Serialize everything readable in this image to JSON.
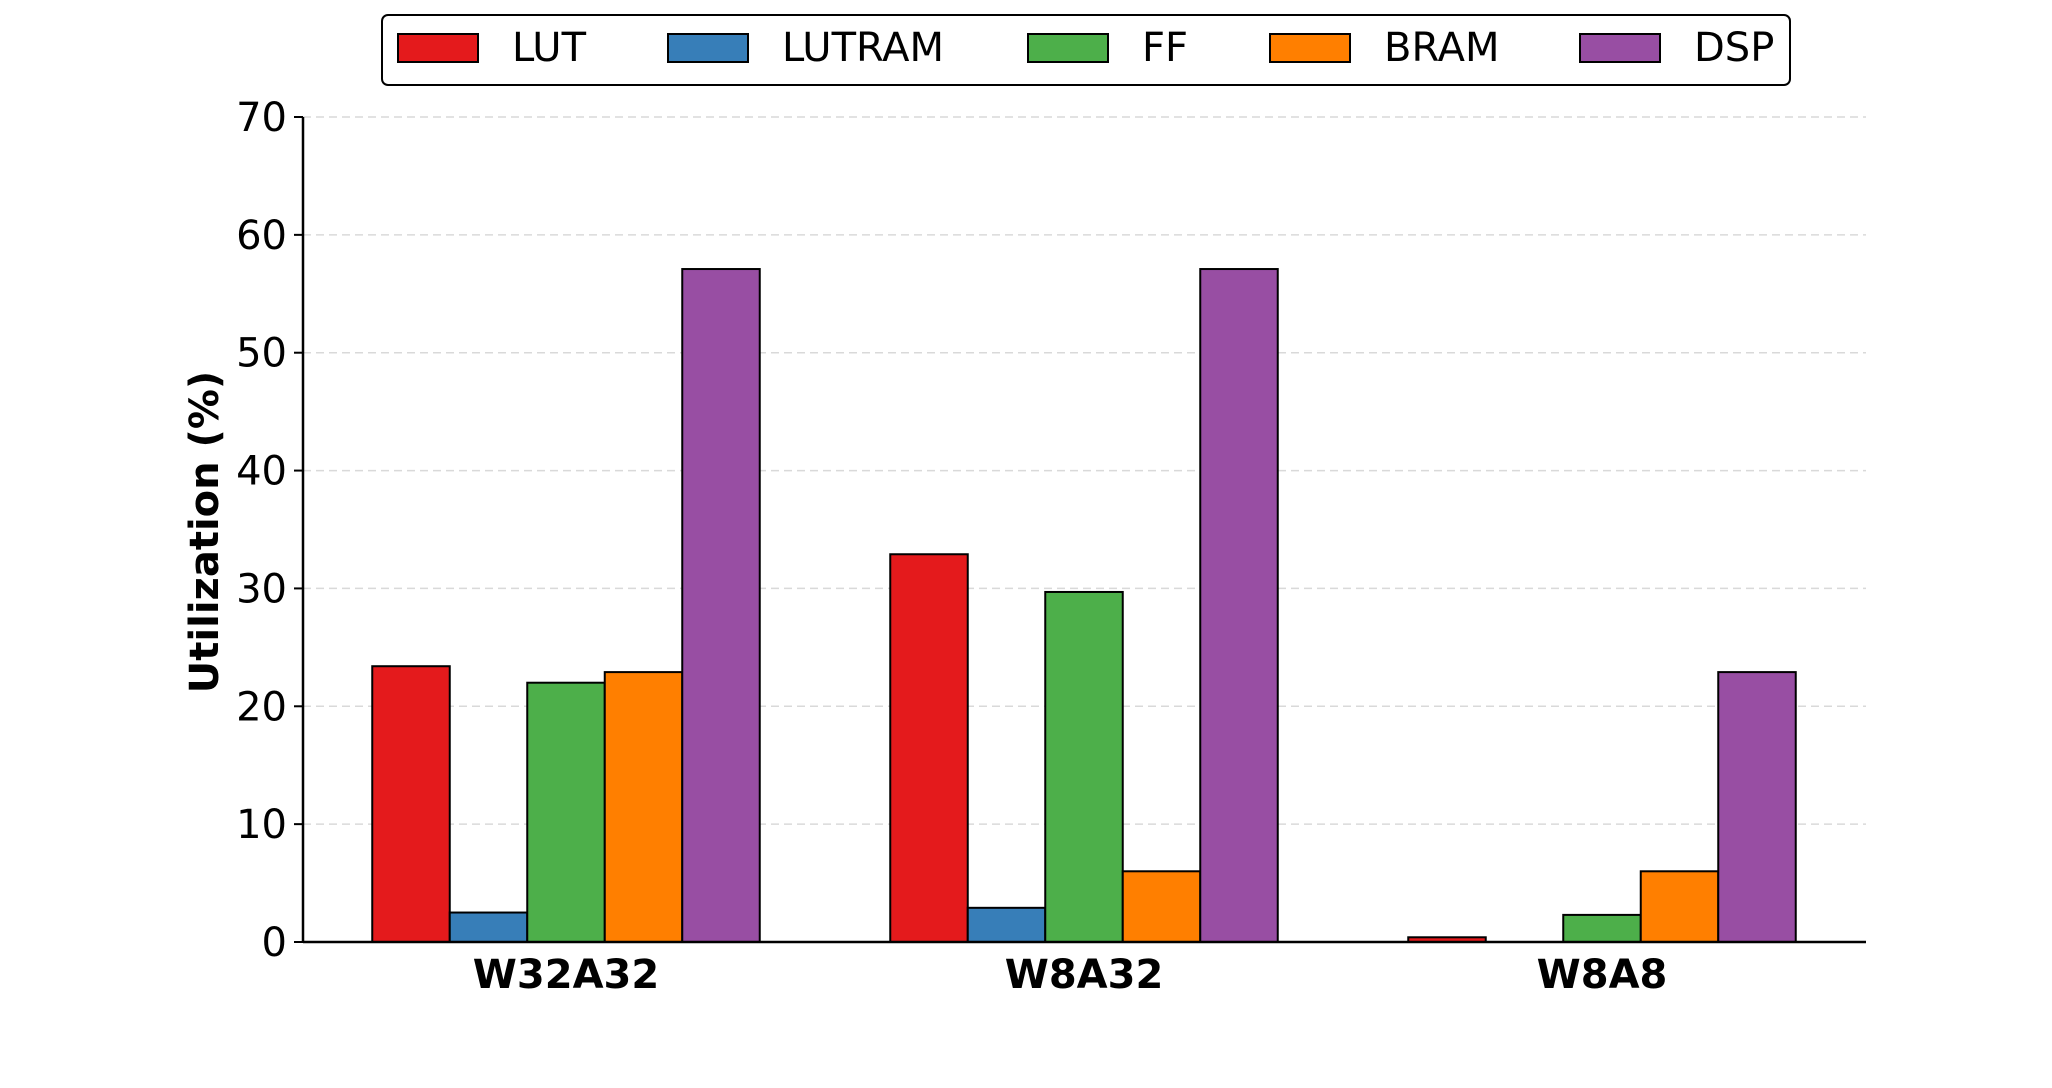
{
  "chart_data": {
    "type": "bar",
    "title": "",
    "xlabel": "",
    "ylabel": "Utilization (%)",
    "ylim": [
      0,
      70
    ],
    "yticks": [
      0,
      10,
      20,
      30,
      40,
      50,
      60,
      70
    ],
    "grid": true,
    "legend_position": "top-center",
    "categories": [
      "W32A32",
      "W8A32",
      "W8A8"
    ],
    "series": [
      {
        "name": "LUT",
        "color": "#e41a1c",
        "values": [
          23.4,
          32.9,
          0.4
        ]
      },
      {
        "name": "LUTRAM",
        "color": "#377eb8",
        "values": [
          2.5,
          2.9,
          0.0
        ]
      },
      {
        "name": "FF",
        "color": "#4daf4a",
        "values": [
          22.0,
          29.7,
          2.3
        ]
      },
      {
        "name": "BRAM",
        "color": "#ff7f00",
        "values": [
          22.9,
          6.0,
          6.0
        ]
      },
      {
        "name": "DSP",
        "color": "#984ea3",
        "values": [
          57.1,
          57.1,
          22.9
        ]
      }
    ]
  }
}
